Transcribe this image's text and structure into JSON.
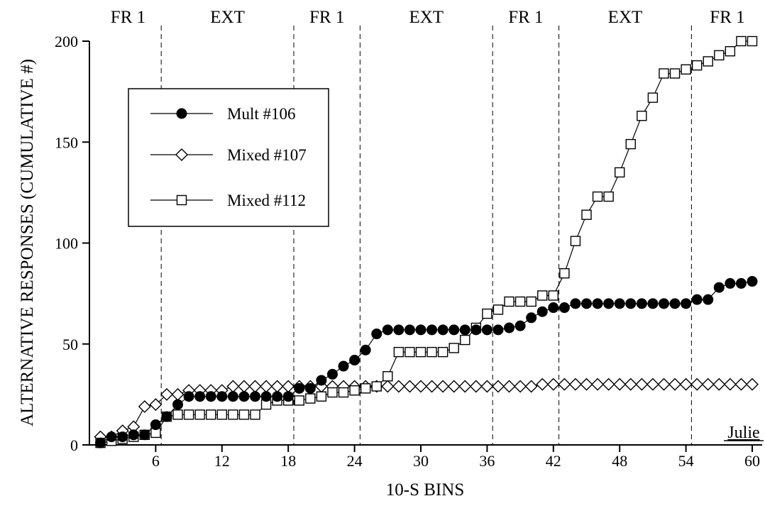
{
  "chart_data": {
    "type": "line",
    "xlabel": "10-S BINS",
    "ylabel": "ALTERNATIVE RESPONSES (CUMULATIVE #)",
    "xlim": [
      0,
      61
    ],
    "ylim": [
      0,
      200
    ],
    "xticks": [
      6,
      12,
      18,
      24,
      30,
      36,
      42,
      48,
      54,
      60
    ],
    "yticks": [
      0,
      50,
      100,
      150,
      200
    ],
    "grid": false,
    "legend_position": "top-left",
    "subject_label": "Julie",
    "phases": [
      {
        "label": "FR 1",
        "start": 0,
        "end": 6.5
      },
      {
        "label": "EXT",
        "start": 6.5,
        "end": 18.5
      },
      {
        "label": "FR 1",
        "start": 18.5,
        "end": 24.5
      },
      {
        "label": "EXT",
        "start": 24.5,
        "end": 36.5
      },
      {
        "label": "FR 1",
        "start": 36.5,
        "end": 42.5
      },
      {
        "label": "EXT",
        "start": 42.5,
        "end": 54.5
      },
      {
        "label": "FR 1",
        "start": 54.5,
        "end": 61
      }
    ],
    "x": [
      1,
      2,
      3,
      4,
      5,
      6,
      7,
      8,
      9,
      10,
      11,
      12,
      13,
      14,
      15,
      16,
      17,
      18,
      19,
      20,
      21,
      22,
      23,
      24,
      25,
      26,
      27,
      28,
      29,
      30,
      31,
      32,
      33,
      34,
      35,
      36,
      37,
      38,
      39,
      40,
      41,
      42,
      43,
      44,
      45,
      46,
      47,
      48,
      49,
      50,
      51,
      52,
      53,
      54,
      55,
      56,
      57,
      58,
      59,
      60
    ],
    "series": [
      {
        "name": "Mult #106",
        "marker": "filled-circle",
        "values": [
          1,
          4,
          4,
          5,
          5,
          10,
          14,
          20,
          24,
          24,
          24,
          24,
          24,
          24,
          24,
          24,
          24,
          24,
          28,
          28,
          32,
          35,
          39,
          42,
          47,
          55,
          57,
          57,
          57,
          57,
          57,
          57,
          57,
          57,
          57,
          57,
          57,
          58,
          59,
          63,
          66,
          68,
          68,
          70,
          70,
          70,
          70,
          70,
          70,
          70,
          70,
          70,
          70,
          70,
          72,
          72,
          78,
          80,
          80,
          81
        ]
      },
      {
        "name": "Mixed #107",
        "marker": "open-diamond",
        "values": [
          4,
          4,
          7,
          9,
          19,
          20,
          25,
          25,
          27,
          27,
          27,
          27,
          29,
          29,
          29,
          29,
          29,
          29,
          29,
          29,
          29,
          29,
          29,
          29,
          29,
          29,
          29,
          29,
          29,
          29,
          29,
          29,
          29,
          29,
          29,
          29,
          29,
          29,
          29,
          29,
          30,
          30,
          30,
          30,
          30,
          30,
          30,
          30,
          30,
          30,
          30,
          30,
          30,
          30,
          30,
          30,
          30,
          30,
          30,
          30
        ]
      },
      {
        "name": "Mixed #112",
        "marker": "open-square",
        "values": [
          1,
          2,
          3,
          4,
          5,
          6,
          14,
          15,
          15,
          15,
          15,
          15,
          15,
          15,
          15,
          20,
          22,
          22,
          22,
          23,
          24,
          26,
          26,
          27,
          28,
          29,
          34,
          46,
          46,
          46,
          46,
          46,
          48,
          52,
          58,
          65,
          67,
          71,
          71,
          71,
          74,
          74,
          85,
          101,
          114,
          123,
          123,
          135,
          149,
          163,
          172,
          184,
          184,
          186,
          188,
          190,
          193,
          195,
          200,
          200
        ]
      }
    ]
  }
}
